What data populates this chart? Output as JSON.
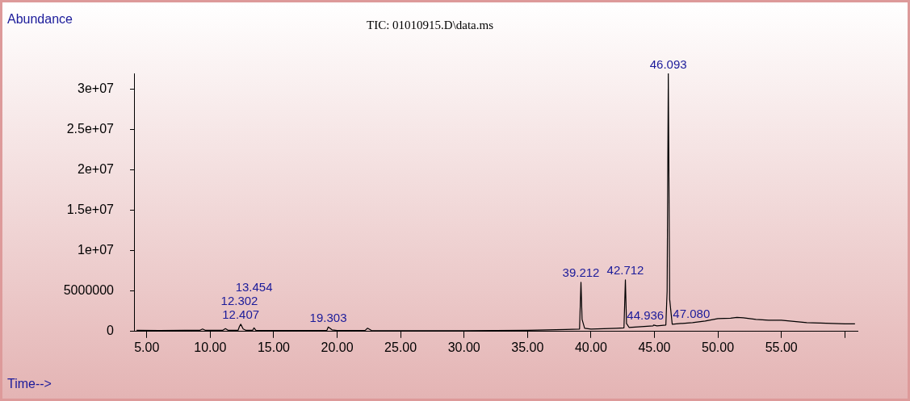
{
  "chart_data": {
    "type": "line",
    "title": "TIC: 01010915.D\\data.ms",
    "xlabel": "Time-->",
    "ylabel": "Abundance",
    "x": [
      4.2,
      6,
      8,
      9.2,
      9.4,
      9.6,
      11.0,
      11.2,
      11.4,
      12.2,
      12.302,
      12.407,
      12.6,
      12.8,
      13.35,
      13.454,
      13.6,
      15,
      17,
      19.2,
      19.303,
      19.6,
      20,
      22.2,
      22.4,
      22.7,
      25,
      30,
      35,
      38,
      39.1,
      39.212,
      39.3,
      39.5,
      40,
      42,
      42.6,
      42.712,
      42.8,
      43,
      44.9,
      44.936,
      45.2,
      45.9,
      46.0,
      46.093,
      46.2,
      46.4,
      47.08,
      47.2,
      48,
      49,
      50,
      51,
      51.5,
      52,
      53,
      54,
      55,
      56,
      57,
      58,
      59,
      60,
      60.8
    ],
    "series": [
      {
        "color": "#000000",
        "values": [
          150000,
          120000,
          150000,
          150000,
          300000,
          150000,
          150000,
          350000,
          150000,
          150000,
          600000,
          900000,
          300000,
          150000,
          150000,
          450000,
          150000,
          120000,
          120000,
          150000,
          550000,
          200000,
          120000,
          120000,
          400000,
          120000,
          100000,
          100000,
          150000,
          250000,
          300000,
          6100000,
          1500000,
          400000,
          300000,
          400000,
          450000,
          6400000,
          1000000,
          500000,
          700000,
          800000,
          700000,
          800000,
          5000000,
          32000000,
          4000000,
          900000,
          1000000,
          1000000,
          1100000,
          1300000,
          1600000,
          1650000,
          1750000,
          1700000,
          1500000,
          1400000,
          1400000,
          1250000,
          1100000,
          1050000,
          1000000,
          950000,
          950000
        ]
      }
    ],
    "xlim": [
      4,
      61
    ],
    "xticks": [
      {
        "value": 5,
        "label": "5.00"
      },
      {
        "value": 10,
        "label": "10.00"
      },
      {
        "value": 15,
        "label": "15.00"
      },
      {
        "value": 20,
        "label": "20.00"
      },
      {
        "value": 25,
        "label": "25.00"
      },
      {
        "value": 30,
        "label": "30.00"
      },
      {
        "value": 35,
        "label": "35.00"
      },
      {
        "value": 40,
        "label": "40.00"
      },
      {
        "value": 45,
        "label": "45.00"
      },
      {
        "value": 50,
        "label": "50.00"
      },
      {
        "value": 55,
        "label": "55.00"
      },
      {
        "value": 60,
        "label": null
      }
    ],
    "ylim": [
      0,
      32000000
    ],
    "yticks": [
      0,
      5000000,
      {
        "value": 10000000,
        "label": "1e+07"
      },
      {
        "value": 15000000,
        "label": "1.5e+07"
      },
      {
        "value": 20000000,
        "label": "2e+07"
      },
      {
        "value": 25000000,
        "label": "2.5e+07"
      },
      {
        "value": 30000000,
        "label": "3e+07"
      }
    ],
    "annotations": [
      {
        "text": "12.302",
        "x": 12.302,
        "y": 600000
      },
      {
        "text": "12.407",
        "x": 12.407,
        "y": 900000
      },
      {
        "text": "13.454",
        "x": 13.454,
        "y": 450000
      },
      {
        "text": "19.303",
        "x": 19.303,
        "y": 550000
      },
      {
        "text": "39.212",
        "x": 39.212,
        "y": 6100000
      },
      {
        "text": "42.712",
        "x": 42.712,
        "y": 6400000
      },
      {
        "text": "44.936",
        "x": 44.936,
        "y": 800000
      },
      {
        "text": "46.093",
        "x": 46.093,
        "y": 32000000
      },
      {
        "text": "47.080",
        "x": 47.08,
        "y": 1000000
      }
    ],
    "grid": false,
    "legend": false,
    "marker": "none",
    "line_style": "solid"
  }
}
